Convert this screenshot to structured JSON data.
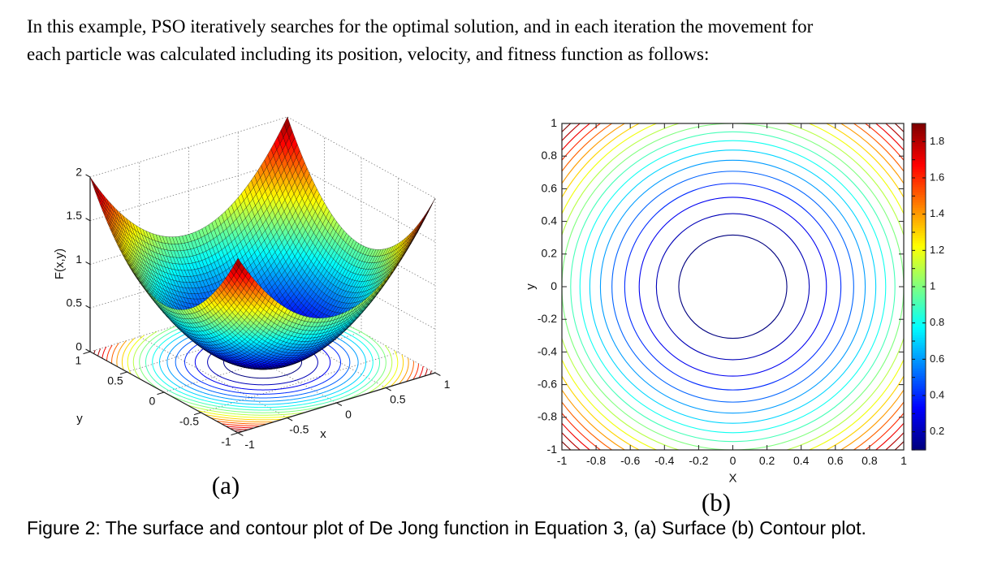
{
  "intro": {
    "lines": [
      "In this example, PSO iteratively searches for the optimal solution, and in each iteration the movement for",
      "each particle was calculated including its position, velocity, and fitness function as follows:"
    ]
  },
  "figure": {
    "caption": "Figure 2: The surface and contour plot of De Jong function in Equation 3, (a) Surface (b) Contour plot.",
    "sublabels": {
      "a": "(a)",
      "b": "(b)"
    }
  },
  "chart_data": [
    {
      "type": "surface",
      "function": "De Jong sphere function F(x,y) = x^2 + y^2",
      "xlabel": "x",
      "ylabel": "y",
      "zlabel": "F(x,y)",
      "x_range": [
        -1,
        1
      ],
      "y_range": [
        -1,
        1
      ],
      "z_range": [
        0,
        2
      ],
      "x_ticks": [
        -1,
        -0.5,
        0,
        0.5,
        1
      ],
      "y_ticks": [
        -1,
        -0.5,
        0,
        0.5,
        1
      ],
      "z_ticks": [
        0,
        0.5,
        1,
        1.5,
        2
      ],
      "colormap": "jet",
      "mesh_divisions": 60,
      "floor_contour_levels": [
        0.1,
        0.2,
        0.3,
        0.4,
        0.5,
        0.6,
        0.7,
        0.8,
        0.9,
        1,
        1.1,
        1.2,
        1.3,
        1.4,
        1.5,
        1.6,
        1.7,
        1.8,
        1.9
      ],
      "view": {
        "azimuth_deg": -37.5,
        "elevation_deg": 30
      },
      "grid": "dotted"
    },
    {
      "type": "contour",
      "function": "De Jong sphere function F(x,y) = x^2 + y^2",
      "xlabel": "X",
      "ylabel": "y",
      "x_range": [
        -1,
        1
      ],
      "y_range": [
        -1,
        1
      ],
      "x_ticks": [
        -1,
        -0.8,
        -0.6,
        -0.4,
        -0.2,
        0,
        0.2,
        0.4,
        0.6,
        0.8,
        1
      ],
      "y_ticks": [
        -1,
        -0.8,
        -0.6,
        -0.4,
        -0.2,
        0,
        0.2,
        0.4,
        0.6,
        0.8,
        1
      ],
      "levels": [
        0.1,
        0.2,
        0.3,
        0.4,
        0.5,
        0.6,
        0.7,
        0.8,
        0.9,
        1,
        1.1,
        1.2,
        1.3,
        1.4,
        1.5,
        1.6,
        1.7,
        1.8,
        1.9
      ],
      "colormap": "jet",
      "colorbar": {
        "range": [
          0.1,
          1.9
        ],
        "tick_labels": [
          0.2,
          0.4,
          0.6,
          0.8,
          1,
          1.2,
          1.4,
          1.6,
          1.8
        ]
      }
    }
  ]
}
